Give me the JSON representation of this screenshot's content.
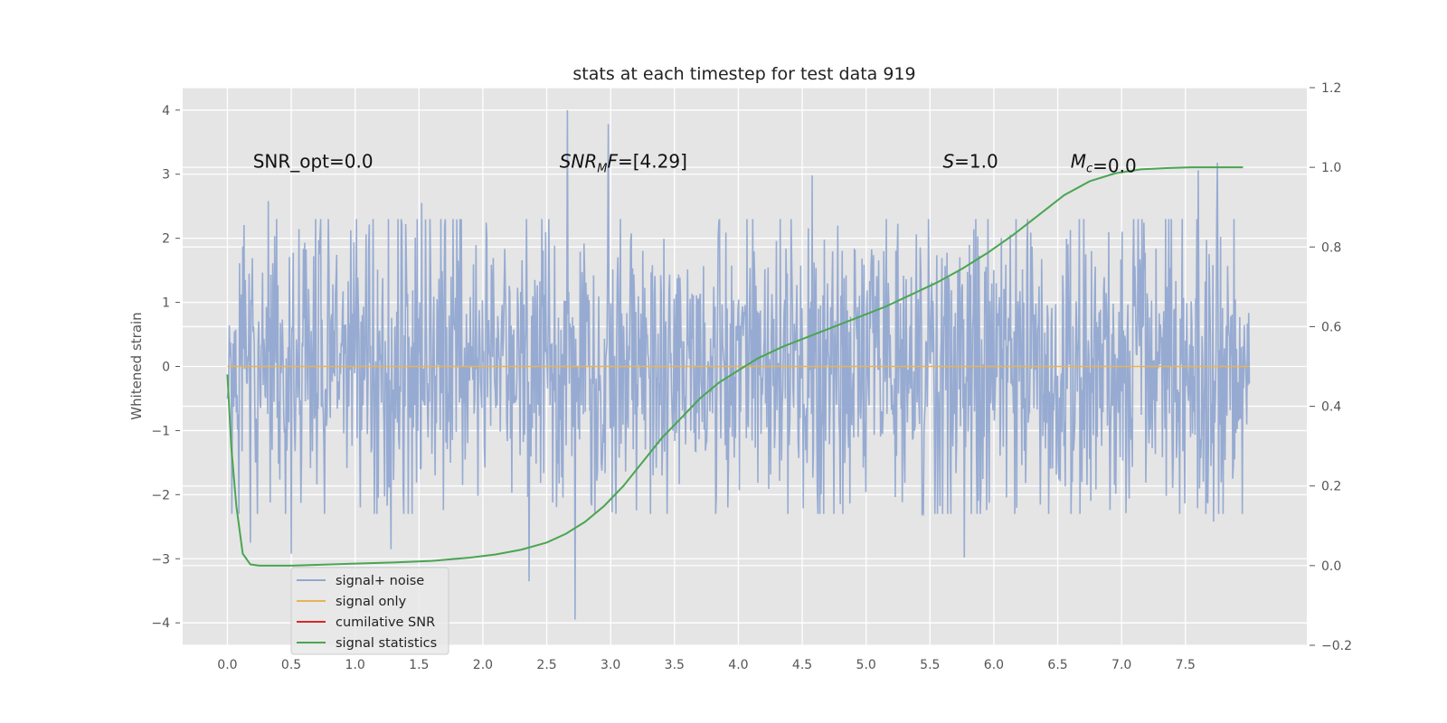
{
  "chart_data": {
    "type": "line",
    "title": "stats at each timestep for test data 919",
    "xlabel": "",
    "ylabel": "Whitened strain",
    "y2label": "",
    "xlim": [
      -0.35,
      8.45
    ],
    "ylim": [
      -4.35,
      4.35
    ],
    "y2lim": [
      -0.2,
      1.2
    ],
    "x_ticks": [
      "0.0",
      "0.5",
      "1.0",
      "1.5",
      "2.0",
      "2.5",
      "3.0",
      "3.5",
      "4.0",
      "4.5",
      "5.0",
      "5.5",
      "6.0",
      "6.5",
      "7.0",
      "7.5"
    ],
    "y_ticks": [
      "−4",
      "−3",
      "−2",
      "−1",
      "0",
      "1",
      "2",
      "3",
      "4"
    ],
    "y2_ticks": [
      "−0.2",
      "0.0",
      "0.2",
      "0.4",
      "0.6",
      "0.8",
      "1.0",
      "1.2"
    ],
    "grid": true,
    "background": "#e5e5e5",
    "legend_position": "lower-left",
    "annotations": [
      {
        "label": "SNR_opt",
        "value": "=0.0",
        "x": 0.2,
        "y": 3.2,
        "italic": false
      },
      {
        "label": "SNR",
        "sub": "M",
        "tail": "F",
        "value": "=[4.29]",
        "x": 2.6,
        "y": 3.2,
        "italic": true
      },
      {
        "label": "S",
        "value": "=1.0",
        "x": 5.6,
        "y": 3.2,
        "italic": true
      },
      {
        "label": "M",
        "sub": "c",
        "value": "=0.0",
        "x": 6.6,
        "y": 3.2,
        "italic": true
      }
    ],
    "series": [
      {
        "name": "signal+ noise",
        "color": "#92a8d1",
        "axis": "left",
        "x_range": [
          0.0,
          8.0
        ],
        "n_samples": 1600,
        "envelope": [
          -2.3,
          2.3
        ],
        "spikes": [
          [
            2.66,
            4.0
          ],
          [
            2.98,
            3.78
          ],
          [
            4.58,
            2.98
          ],
          [
            7.75,
            3.18
          ],
          [
            7.6,
            3.06
          ],
          [
            0.32,
            2.58
          ],
          [
            1.52,
            2.55
          ],
          [
            2.72,
            -3.95
          ],
          [
            2.36,
            -3.35
          ],
          [
            1.28,
            -2.85
          ],
          [
            0.5,
            -2.92
          ],
          [
            5.77,
            -2.98
          ],
          [
            0.18,
            -2.75
          ],
          [
            7.72,
            -2.42
          ]
        ]
      },
      {
        "name": "signal only",
        "color": "#e8b356",
        "axis": "left",
        "x": [
          0.0,
          8.0
        ],
        "y": [
          0.0,
          0.0
        ]
      },
      {
        "name": "cumilative SNR",
        "color": "#d62728",
        "axis": "left",
        "x": [],
        "y": []
      },
      {
        "name": "signal statistics",
        "color": "#4aa552",
        "axis": "right",
        "x": [
          0.0,
          0.03,
          0.07,
          0.12,
          0.18,
          0.25,
          0.35,
          0.5,
          0.7,
          1.0,
          1.3,
          1.6,
          1.9,
          2.1,
          2.3,
          2.5,
          2.65,
          2.8,
          2.95,
          3.1,
          3.25,
          3.4,
          3.55,
          3.7,
          3.85,
          4.0,
          4.15,
          4.35,
          4.55,
          4.75,
          4.95,
          5.15,
          5.35,
          5.55,
          5.75,
          5.95,
          6.15,
          6.35,
          6.55,
          6.75,
          6.95,
          7.15,
          7.35,
          7.55,
          7.75,
          7.95
        ],
        "y": [
          0.48,
          0.3,
          0.15,
          0.03,
          0.003,
          0.0,
          0.0,
          0.0,
          0.002,
          0.005,
          0.008,
          0.012,
          0.02,
          0.028,
          0.04,
          0.058,
          0.08,
          0.11,
          0.15,
          0.2,
          0.26,
          0.32,
          0.37,
          0.42,
          0.46,
          0.49,
          0.52,
          0.55,
          0.575,
          0.6,
          0.625,
          0.65,
          0.68,
          0.71,
          0.745,
          0.785,
          0.83,
          0.88,
          0.93,
          0.965,
          0.985,
          0.995,
          0.998,
          1.0,
          1.0,
          1.0
        ]
      }
    ]
  }
}
